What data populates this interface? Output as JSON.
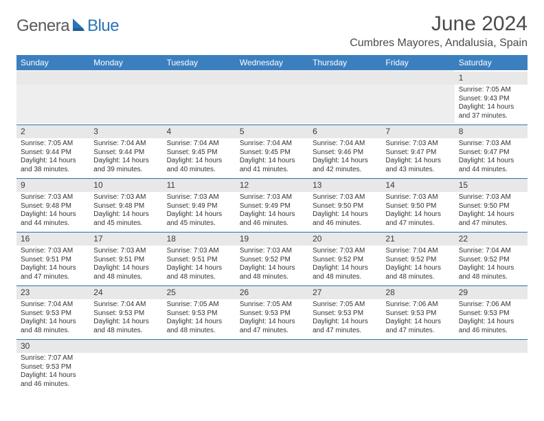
{
  "logo": {
    "part1": "Genera",
    "part2": "Blue"
  },
  "title": "June 2024",
  "location": "Cumbres Mayores, Andalusia, Spain",
  "colors": {
    "header_bg": "#3b7fbf",
    "daynum_bg": "#e8e8e8",
    "row_border": "#2b6fad",
    "logo_gray": "#58595b",
    "logo_blue": "#2a74b8",
    "sail_color": "#2a74b8"
  },
  "weekdays": [
    "Sunday",
    "Monday",
    "Tuesday",
    "Wednesday",
    "Thursday",
    "Friday",
    "Saturday"
  ],
  "grid": [
    [
      {
        "n": "",
        "empty": true
      },
      {
        "n": "",
        "empty": true
      },
      {
        "n": "",
        "empty": true
      },
      {
        "n": "",
        "empty": true
      },
      {
        "n": "",
        "empty": true
      },
      {
        "n": "",
        "empty": true
      },
      {
        "n": "1",
        "sr": "Sunrise: 7:05 AM",
        "ss": "Sunset: 9:43 PM",
        "d1": "Daylight: 14 hours",
        "d2": "and 37 minutes."
      }
    ],
    [
      {
        "n": "2",
        "sr": "Sunrise: 7:05 AM",
        "ss": "Sunset: 9:44 PM",
        "d1": "Daylight: 14 hours",
        "d2": "and 38 minutes."
      },
      {
        "n": "3",
        "sr": "Sunrise: 7:04 AM",
        "ss": "Sunset: 9:44 PM",
        "d1": "Daylight: 14 hours",
        "d2": "and 39 minutes."
      },
      {
        "n": "4",
        "sr": "Sunrise: 7:04 AM",
        "ss": "Sunset: 9:45 PM",
        "d1": "Daylight: 14 hours",
        "d2": "and 40 minutes."
      },
      {
        "n": "5",
        "sr": "Sunrise: 7:04 AM",
        "ss": "Sunset: 9:45 PM",
        "d1": "Daylight: 14 hours",
        "d2": "and 41 minutes."
      },
      {
        "n": "6",
        "sr": "Sunrise: 7:04 AM",
        "ss": "Sunset: 9:46 PM",
        "d1": "Daylight: 14 hours",
        "d2": "and 42 minutes."
      },
      {
        "n": "7",
        "sr": "Sunrise: 7:03 AM",
        "ss": "Sunset: 9:47 PM",
        "d1": "Daylight: 14 hours",
        "d2": "and 43 minutes."
      },
      {
        "n": "8",
        "sr": "Sunrise: 7:03 AM",
        "ss": "Sunset: 9:47 PM",
        "d1": "Daylight: 14 hours",
        "d2": "and 44 minutes."
      }
    ],
    [
      {
        "n": "9",
        "sr": "Sunrise: 7:03 AM",
        "ss": "Sunset: 9:48 PM",
        "d1": "Daylight: 14 hours",
        "d2": "and 44 minutes."
      },
      {
        "n": "10",
        "sr": "Sunrise: 7:03 AM",
        "ss": "Sunset: 9:48 PM",
        "d1": "Daylight: 14 hours",
        "d2": "and 45 minutes."
      },
      {
        "n": "11",
        "sr": "Sunrise: 7:03 AM",
        "ss": "Sunset: 9:49 PM",
        "d1": "Daylight: 14 hours",
        "d2": "and 45 minutes."
      },
      {
        "n": "12",
        "sr": "Sunrise: 7:03 AM",
        "ss": "Sunset: 9:49 PM",
        "d1": "Daylight: 14 hours",
        "d2": "and 46 minutes."
      },
      {
        "n": "13",
        "sr": "Sunrise: 7:03 AM",
        "ss": "Sunset: 9:50 PM",
        "d1": "Daylight: 14 hours",
        "d2": "and 46 minutes."
      },
      {
        "n": "14",
        "sr": "Sunrise: 7:03 AM",
        "ss": "Sunset: 9:50 PM",
        "d1": "Daylight: 14 hours",
        "d2": "and 47 minutes."
      },
      {
        "n": "15",
        "sr": "Sunrise: 7:03 AM",
        "ss": "Sunset: 9:50 PM",
        "d1": "Daylight: 14 hours",
        "d2": "and 47 minutes."
      }
    ],
    [
      {
        "n": "16",
        "sr": "Sunrise: 7:03 AM",
        "ss": "Sunset: 9:51 PM",
        "d1": "Daylight: 14 hours",
        "d2": "and 47 minutes."
      },
      {
        "n": "17",
        "sr": "Sunrise: 7:03 AM",
        "ss": "Sunset: 9:51 PM",
        "d1": "Daylight: 14 hours",
        "d2": "and 48 minutes."
      },
      {
        "n": "18",
        "sr": "Sunrise: 7:03 AM",
        "ss": "Sunset: 9:51 PM",
        "d1": "Daylight: 14 hours",
        "d2": "and 48 minutes."
      },
      {
        "n": "19",
        "sr": "Sunrise: 7:03 AM",
        "ss": "Sunset: 9:52 PM",
        "d1": "Daylight: 14 hours",
        "d2": "and 48 minutes."
      },
      {
        "n": "20",
        "sr": "Sunrise: 7:03 AM",
        "ss": "Sunset: 9:52 PM",
        "d1": "Daylight: 14 hours",
        "d2": "and 48 minutes."
      },
      {
        "n": "21",
        "sr": "Sunrise: 7:04 AM",
        "ss": "Sunset: 9:52 PM",
        "d1": "Daylight: 14 hours",
        "d2": "and 48 minutes."
      },
      {
        "n": "22",
        "sr": "Sunrise: 7:04 AM",
        "ss": "Sunset: 9:52 PM",
        "d1": "Daylight: 14 hours",
        "d2": "and 48 minutes."
      }
    ],
    [
      {
        "n": "23",
        "sr": "Sunrise: 7:04 AM",
        "ss": "Sunset: 9:53 PM",
        "d1": "Daylight: 14 hours",
        "d2": "and 48 minutes."
      },
      {
        "n": "24",
        "sr": "Sunrise: 7:04 AM",
        "ss": "Sunset: 9:53 PM",
        "d1": "Daylight: 14 hours",
        "d2": "and 48 minutes."
      },
      {
        "n": "25",
        "sr": "Sunrise: 7:05 AM",
        "ss": "Sunset: 9:53 PM",
        "d1": "Daylight: 14 hours",
        "d2": "and 48 minutes."
      },
      {
        "n": "26",
        "sr": "Sunrise: 7:05 AM",
        "ss": "Sunset: 9:53 PM",
        "d1": "Daylight: 14 hours",
        "d2": "and 47 minutes."
      },
      {
        "n": "27",
        "sr": "Sunrise: 7:05 AM",
        "ss": "Sunset: 9:53 PM",
        "d1": "Daylight: 14 hours",
        "d2": "and 47 minutes."
      },
      {
        "n": "28",
        "sr": "Sunrise: 7:06 AM",
        "ss": "Sunset: 9:53 PM",
        "d1": "Daylight: 14 hours",
        "d2": "and 47 minutes."
      },
      {
        "n": "29",
        "sr": "Sunrise: 7:06 AM",
        "ss": "Sunset: 9:53 PM",
        "d1": "Daylight: 14 hours",
        "d2": "and 46 minutes."
      }
    ],
    [
      {
        "n": "30",
        "sr": "Sunrise: 7:07 AM",
        "ss": "Sunset: 9:53 PM",
        "d1": "Daylight: 14 hours",
        "d2": "and 46 minutes."
      },
      {
        "n": "",
        "empty": true
      },
      {
        "n": "",
        "empty": true
      },
      {
        "n": "",
        "empty": true
      },
      {
        "n": "",
        "empty": true
      },
      {
        "n": "",
        "empty": true
      },
      {
        "n": "",
        "empty": true
      }
    ]
  ]
}
